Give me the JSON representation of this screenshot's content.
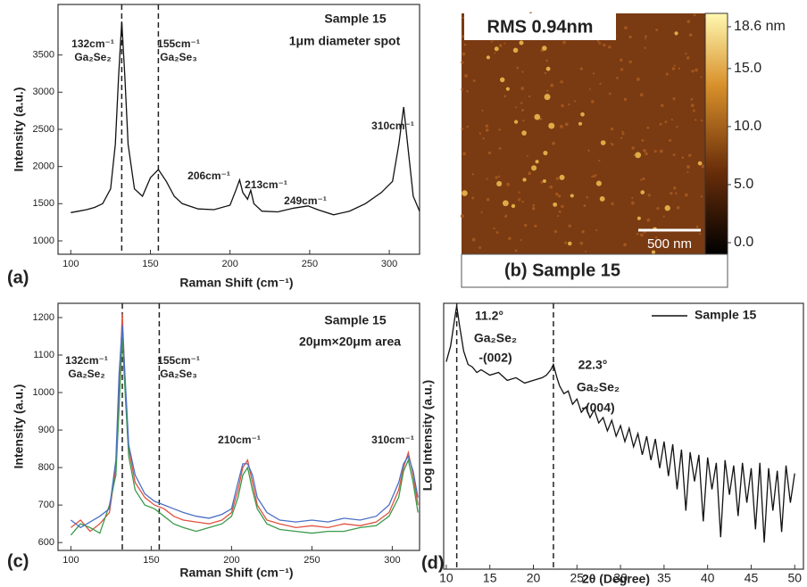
{
  "chart_data": [
    {
      "type": "line",
      "xlabel": "Raman Shift (cm⁻¹)",
      "ylabel": "Intensity (a.u.)",
      "panel_label": "(a)",
      "x": [
        100,
        105,
        110,
        115,
        120,
        125,
        128,
        130,
        132,
        134,
        136,
        140,
        145,
        150,
        155,
        160,
        165,
        170,
        180,
        190,
        200,
        204,
        206,
        208,
        211,
        213,
        215,
        220,
        230,
        240,
        249,
        255,
        265,
        275,
        285,
        295,
        302,
        306,
        309,
        312,
        315,
        319
      ],
      "series": [
        {
          "color": "#111111",
          "values": [
            1380,
            1400,
            1420,
            1450,
            1500,
            1700,
            2300,
            3200,
            3950,
            3200,
            2300,
            1700,
            1600,
            1850,
            1960,
            1800,
            1600,
            1500,
            1430,
            1420,
            1480,
            1700,
            1820,
            1650,
            1560,
            1680,
            1500,
            1400,
            1390,
            1440,
            1470,
            1420,
            1350,
            1400,
            1500,
            1650,
            1800,
            2300,
            2800,
            2200,
            1600,
            1400
          ]
        }
      ],
      "xlim": [
        92,
        319
      ],
      "ylim": [
        820,
        4180
      ],
      "xticks": [
        100,
        150,
        200,
        250,
        300
      ],
      "yticks": [
        1000,
        1500,
        2000,
        2500,
        3000,
        3500
      ],
      "vlines": [
        132,
        155
      ],
      "annotations": [
        "Sample 15",
        "1μm diameter spot",
        "132cm⁻¹",
        "Ga₂Se₂",
        "155cm⁻¹",
        "Ga₂Se₃",
        "206cm⁻¹",
        "213cm⁻¹",
        "249cm⁻¹",
        "310cm⁻¹"
      ]
    },
    {
      "type": "image",
      "title": "RMS 0.94nm",
      "caption": "(b) Sample 15",
      "scale_bar": "500 nm",
      "clim": [
        0,
        18.6
      ],
      "cticks": [
        {
          "value": 0,
          "label": "0.0"
        },
        {
          "value": 5,
          "label": "5.0"
        },
        {
          "value": 10,
          "label": "10.0"
        },
        {
          "value": 15,
          "label": "15.0"
        },
        {
          "value": 18.6,
          "label": "18.6 nm"
        }
      ]
    },
    {
      "type": "line",
      "xlabel": "Raman Shift (cm⁻¹)",
      "ylabel": "Intensity (a.u.)",
      "panel_label": "(c)",
      "x": [
        100,
        106,
        112,
        118,
        124,
        128,
        130,
        132,
        134,
        136,
        140,
        146,
        152,
        158,
        164,
        170,
        178,
        186,
        194,
        200,
        204,
        207,
        210,
        213,
        216,
        222,
        230,
        240,
        250,
        260,
        270,
        280,
        290,
        298,
        304,
        307,
        310,
        313,
        316
      ],
      "series": [
        {
          "color": "#e0523f",
          "values": [
            640,
            660,
            630,
            650,
            680,
            800,
            1000,
            1210,
            1000,
            850,
            760,
            720,
            700,
            690,
            670,
            660,
            655,
            650,
            660,
            680,
            740,
            800,
            820,
            760,
            700,
            660,
            650,
            640,
            645,
            640,
            650,
            645,
            655,
            680,
            740,
            800,
            840,
            780,
            700
          ]
        },
        {
          "color": "#3a9a4a",
          "values": [
            620,
            650,
            640,
            625,
            700,
            780,
            960,
            1150,
            980,
            830,
            740,
            700,
            690,
            670,
            650,
            640,
            630,
            640,
            650,
            670,
            720,
            780,
            800,
            740,
            690,
            650,
            635,
            630,
            625,
            630,
            630,
            640,
            645,
            670,
            720,
            790,
            820,
            760,
            680
          ]
        },
        {
          "color": "#4b6fc4",
          "values": [
            660,
            640,
            655,
            670,
            690,
            820,
            1050,
            1180,
            1020,
            860,
            780,
            730,
            710,
            700,
            690,
            680,
            670,
            665,
            675,
            690,
            760,
            810,
            810,
            780,
            720,
            680,
            660,
            655,
            660,
            655,
            665,
            660,
            670,
            700,
            760,
            810,
            830,
            790,
            720
          ]
        }
      ],
      "xlim": [
        92,
        317
      ],
      "ylim": [
        579,
        1238
      ],
      "xticks": [
        100,
        150,
        200,
        250,
        300
      ],
      "yticks": [
        600,
        700,
        800,
        900,
        1000,
        1100,
        1200
      ],
      "vlines": [
        132,
        155
      ],
      "annotations": [
        "Sample 15",
        "20μm×20μm area",
        "132cm⁻¹",
        "Ga₂Se₂",
        "155cm⁻¹",
        "Ga₂Se₃",
        "210cm⁻¹",
        "310cm⁻¹"
      ]
    },
    {
      "type": "line",
      "xlabel": "2θ (Degree)",
      "ylabel": "Log Intensity (a.u.)",
      "panel_label": "(d)",
      "x": [
        10,
        10.5,
        11,
        11.2,
        11.5,
        12,
        12.5,
        13,
        13.5,
        14,
        15,
        16,
        17,
        18,
        19,
        20,
        21,
        21.5,
        22,
        22.3,
        22.7,
        23,
        23.5,
        24,
        24.5,
        25,
        25.5,
        26,
        26.5,
        27,
        27.5,
        28,
        28.5,
        29,
        29.5,
        30,
        30.5,
        31,
        31.5,
        32,
        32.5,
        33,
        33.5,
        34,
        34.5,
        35,
        35.5,
        36,
        36.5,
        37,
        37.5,
        38,
        38.5,
        39,
        39.5,
        40,
        40.5,
        41,
        41.5,
        42,
        42.5,
        43,
        43.5,
        44,
        44.5,
        45,
        45.5,
        46,
        46.5,
        47,
        47.5,
        48,
        48.5,
        49,
        49.5,
        50
      ],
      "series": [
        {
          "name": "Sample 15",
          "color": "#111111",
          "values": [
            78,
            84,
            95,
            99,
            92,
            82,
            77,
            76,
            74,
            75,
            73,
            74,
            71,
            72,
            70,
            71,
            72,
            73,
            75,
            77,
            72,
            69,
            66,
            67,
            62,
            64,
            59,
            61,
            57,
            60,
            55,
            57,
            52,
            56,
            50,
            54,
            48,
            53,
            46,
            51,
            43,
            50,
            41,
            49,
            38,
            48,
            35,
            47,
            30,
            45,
            22,
            44,
            33,
            43,
            18,
            42,
            30,
            40,
            12,
            41,
            28,
            39,
            20,
            40,
            25,
            38,
            15,
            40,
            10,
            38,
            22,
            37,
            14,
            39,
            25,
            36
          ]
        }
      ],
      "xlim": [
        9.7,
        51
      ],
      "ylim": [
        0,
        100
      ],
      "xticks": [
        10,
        15,
        20,
        25,
        30,
        35,
        40,
        45,
        50
      ],
      "vlines": [
        11.2,
        22.3
      ],
      "legend": "upper right",
      "annotations": [
        "11.2°",
        "Ga₂Se₂",
        "-(002)",
        "22.3°",
        "Ga₂Se₂",
        "-(004)"
      ]
    }
  ]
}
